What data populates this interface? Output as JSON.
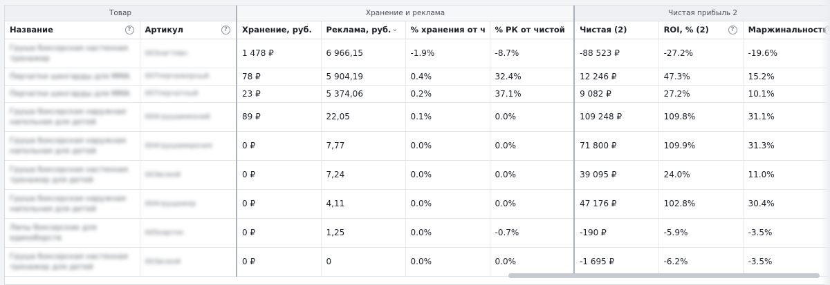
{
  "groups": {
    "product": "Товар",
    "storage_ads": "Хранение и реклама",
    "net_profit": "Чистая прибыль 2"
  },
  "columns": {
    "name": "Название",
    "sku": "Артикул",
    "storage": "Хранение, руб.",
    "ads": "Реклама, руб.",
    "storage_pct": "% хранения от чисто",
    "ad_pct": "% РК от чистой",
    "net": "Чистая (2)",
    "roi": "ROI, % (2)",
    "margin": "Маржинальность"
  },
  "rows": [
    {
      "name": "Груша боксерская настенная тренажер",
      "sku": "003нагтевн",
      "storage": "1 478 ₽",
      "ads": "6 966,15",
      "storage_pct": "-1.9%",
      "ad_pct": "-8.7%",
      "net": "-88 523 ₽",
      "roi": "-27.2%",
      "margin": "-19.6%"
    },
    {
      "name": "Перчатки шенгарды для ММА",
      "sku": "007перчажерный",
      "storage": "78 ₽",
      "ads": "5 904,19",
      "storage_pct": "0.4%",
      "ad_pct": "32.4%",
      "net": "12 246 ₽",
      "roi": "47.3%",
      "margin": "15.2%"
    },
    {
      "name": "Перчатки шенгарды для ММА",
      "sku": "007перчатный",
      "storage": "23 ₽",
      "ads": "5 374,06",
      "storage_pct": "0.2%",
      "ad_pct": "37.1%",
      "net": "9 082 ₽",
      "roi": "27.2%",
      "margin": "10.1%"
    },
    {
      "name": "Груша боксерская наружная напольная для детей",
      "sku": "004грушамжений",
      "storage": "89 ₽",
      "ads": "22,05",
      "storage_pct": "0.1%",
      "ad_pct": "0.0%",
      "net": "109 248 ₽",
      "roi": "109.8%",
      "margin": "31.1%"
    },
    {
      "name": "Груша боксерская наружная напольная для детей",
      "sku": "004грушамерения",
      "storage": "0 ₽",
      "ads": "7,77",
      "storage_pct": "0.0%",
      "ad_pct": "0.0%",
      "net": "71 800 ₽",
      "roi": "109.9%",
      "margin": "31.3%"
    },
    {
      "name": "Груша боксерская настенная тренажер для детей",
      "sku": "003всюой",
      "storage": "0 ₽",
      "ads": "7,24",
      "storage_pct": "0.0%",
      "ad_pct": "0.0%",
      "net": "39 095 ₽",
      "roi": "24.0%",
      "margin": "11.0%"
    },
    {
      "name": "Груша боксерская наружная напольная для детей",
      "sku": "004грущажер",
      "storage": "0 ₽",
      "ads": "4,11",
      "storage_pct": "0.0%",
      "ad_pct": "0.0%",
      "net": "47 176 ₽",
      "roi": "102.8%",
      "margin": "30.4%"
    },
    {
      "name": "Лапы боксерские для единоборств",
      "sku": "005картое",
      "storage": "0 ₽",
      "ads": "1,25",
      "storage_pct": "0.0%",
      "ad_pct": "-0.7%",
      "net": "-190 ₽",
      "roi": "-5.9%",
      "margin": "-3.5%"
    },
    {
      "name": "Груша боксерская настенная тренажер для детей",
      "sku": "003всюой",
      "storage": "0 ₽",
      "ads": "0",
      "storage_pct": "0.0%",
      "ad_pct": "0.0%",
      "net": "-1 695 ₽",
      "roi": "-6.2%",
      "margin": "-3.5%"
    }
  ]
}
